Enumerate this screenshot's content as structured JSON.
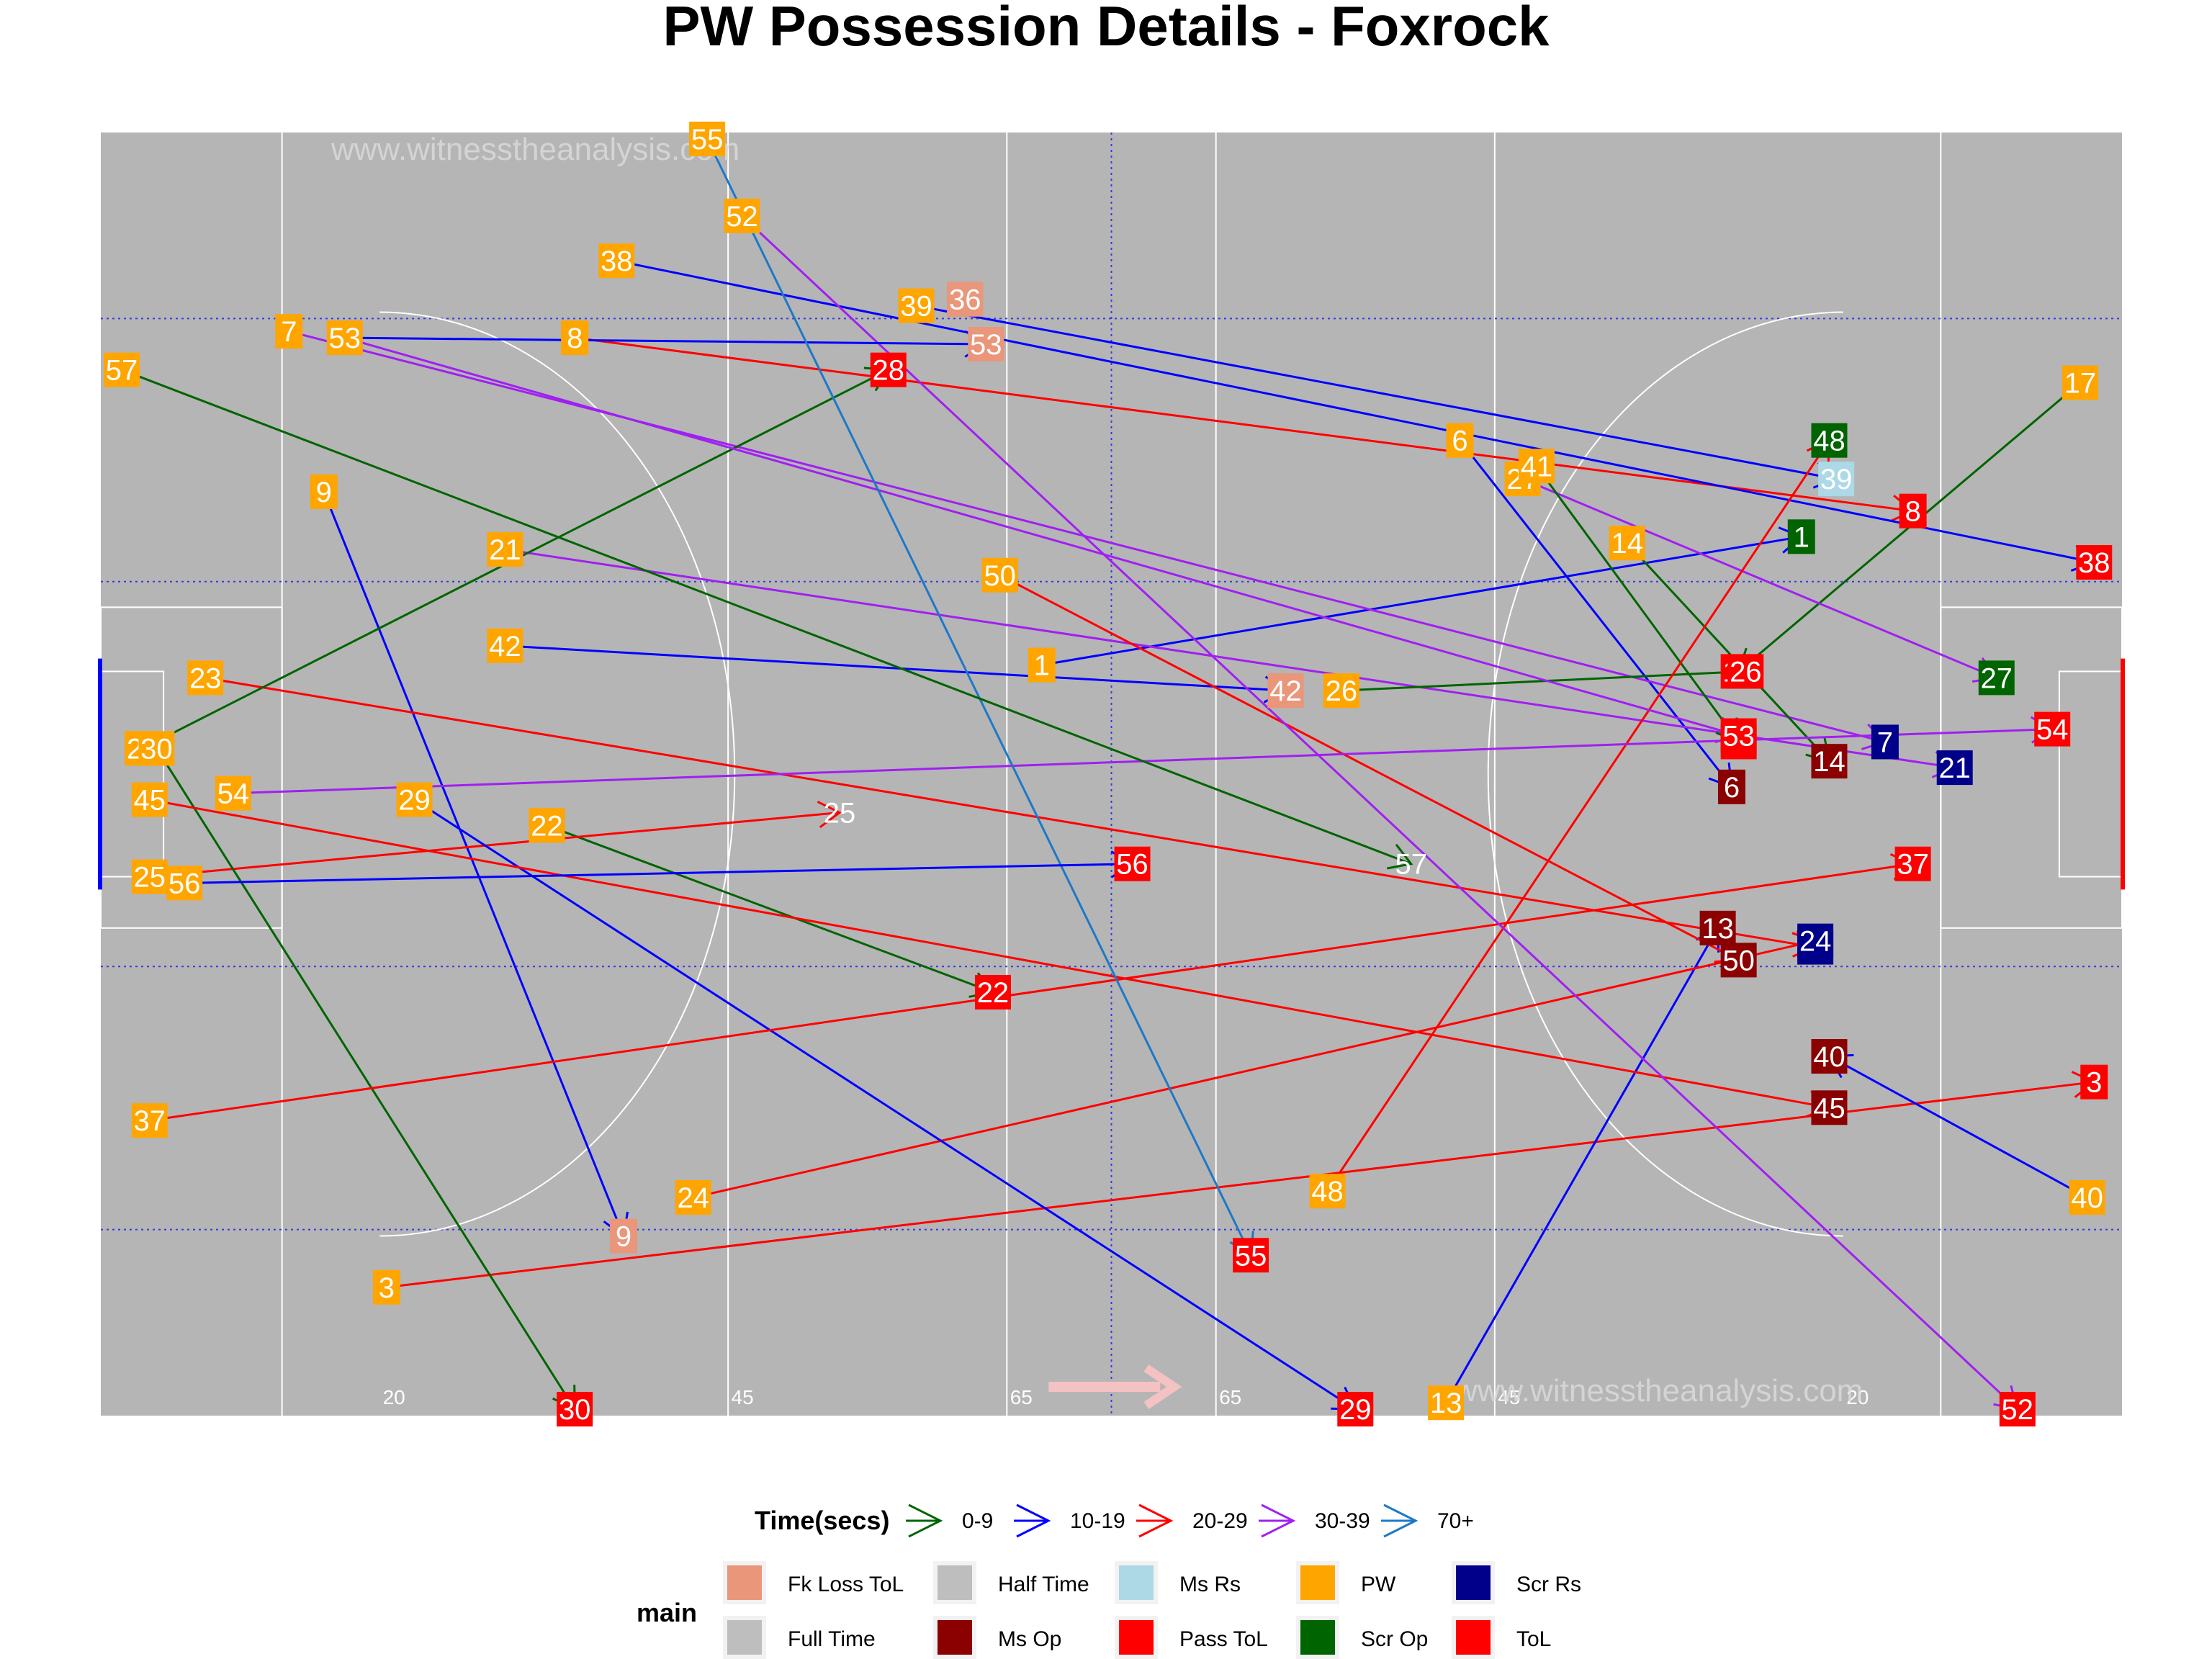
{
  "title": "PW Possession Details - Foxrock",
  "watermarks": [
    "www.witnesstheanalysis.com",
    "www.witnesstheanalysis.com"
  ],
  "yard_labels": [
    "20",
    "45",
    "65",
    "65",
    "45",
    "20"
  ],
  "legend": {
    "time_title": "Time(secs)",
    "time_bins": [
      {
        "label": "0-9",
        "color": "#006400"
      },
      {
        "label": "10-19",
        "color": "#0000FF"
      },
      {
        "label": "20-29",
        "color": "#FF0000"
      },
      {
        "label": "30-39",
        "color": "#A020F0"
      },
      {
        "label": "70+",
        "color": "#1E78C8"
      }
    ],
    "main_title": "main",
    "main_items": [
      {
        "label": "Fk Loss ToL",
        "color": "#E9967A"
      },
      {
        "label": "Full Time",
        "color": "#BEBEBE"
      },
      {
        "label": "Half Time",
        "color": "#BEBEBE"
      },
      {
        "label": "Ms Op",
        "color": "#8B0000"
      },
      {
        "label": "Ms Rs",
        "color": "#ADD8E6"
      },
      {
        "label": "Pass ToL",
        "color": "#FF0000"
      },
      {
        "label": "PW",
        "color": "#FFA500"
      },
      {
        "label": "Scr Op",
        "color": "#006400"
      },
      {
        "label": "Scr Rs",
        "color": "#00008B"
      },
      {
        "label": "ToL",
        "color": "#FF0000"
      }
    ]
  },
  "colors": {
    "pitch": "#B5B5B5",
    "pitch_lines": "#FFFFFF",
    "grid_dotted": "#3A3AE0",
    "arrow_pink": "#F4C2C2"
  },
  "chart_data": {
    "type": "scatter",
    "description": "Possession start (PW) to end points on a Gaelic pitch; x = distance along pitch (0-145), y = width position (0-100, top = 100)",
    "xlim": [
      0,
      145
    ],
    "ylim": [
      0,
      100
    ],
    "possessions": [
      {
        "id": "1",
        "time_bin": "10-19",
        "start": [
          67.5,
          58.5
        ],
        "end": [
          122.0,
          68.5
        ],
        "start_cat": "PW",
        "end_cat": "Scr Op"
      },
      {
        "id": "3",
        "time_bin": "20-29",
        "start": [
          20.5,
          10.0
        ],
        "end": [
          143.0,
          26.0
        ],
        "start_cat": "PW",
        "end_cat": "ToL"
      },
      {
        "id": "6",
        "time_bin": "10-19",
        "start": [
          97.5,
          76.0
        ],
        "end": [
          117.0,
          49.0
        ],
        "start_cat": "PW",
        "end_cat": "Ms Op"
      },
      {
        "id": "7",
        "time_bin": "30-39",
        "start": [
          13.5,
          84.5
        ],
        "end": [
          128.0,
          52.5
        ],
        "start_cat": "PW",
        "end_cat": "Scr Rs"
      },
      {
        "id": "8",
        "time_bin": "20-29",
        "start": [
          34.0,
          84.0
        ],
        "end": [
          130.0,
          70.5
        ],
        "start_cat": "PW",
        "end_cat": "ToL"
      },
      {
        "id": "9",
        "time_bin": "10-19",
        "start": [
          16.0,
          72.0
        ],
        "end": [
          37.5,
          14.0
        ],
        "start_cat": "PW",
        "end_cat": "Fk Loss ToL"
      },
      {
        "id": "13",
        "time_bin": "10-19",
        "start": [
          96.5,
          1.0
        ],
        "end": [
          116.0,
          38.0
        ],
        "start_cat": "PW",
        "end_cat": "Ms Op"
      },
      {
        "id": "14",
        "time_bin": "0-9",
        "start": [
          109.5,
          68.0
        ],
        "end": [
          124.0,
          51.0
        ],
        "start_cat": "PW",
        "end_cat": "Ms Op"
      },
      {
        "id": "17",
        "time_bin": "0-9",
        "start": [
          142.0,
          80.5
        ],
        "end": [
          117.5,
          58.0
        ],
        "start_cat": "PW",
        "end_cat": "ToL"
      },
      {
        "id": "21",
        "time_bin": "30-39",
        "start": [
          29.0,
          67.5
        ],
        "end": [
          133.0,
          50.5
        ],
        "start_cat": "PW",
        "end_cat": "Scr Rs"
      },
      {
        "id": "22",
        "time_bin": "0-9",
        "start": [
          32.0,
          46.0
        ],
        "end": [
          64.0,
          33.0
        ],
        "start_cat": "PW",
        "end_cat": "Pass ToL"
      },
      {
        "id": "23",
        "time_bin": "20-29",
        "start": [
          7.5,
          57.5
        ],
        "end": [
          123.0,
          36.5
        ],
        "start_cat": "PW",
        "end_cat": "Scr Rs"
      },
      {
        "id": "24",
        "time_bin": "20-29",
        "start": [
          42.5,
          17.0
        ],
        "end": [
          123.0,
          37.0
        ],
        "start_cat": "PW",
        "end_cat": "Scr Rs"
      },
      {
        "id": "25",
        "time_bin": "20-29",
        "start": [
          3.5,
          42.0
        ],
        "end": [
          53.0,
          47.0
        ],
        "start_cat": "PW",
        "end_cat": "Half Time"
      },
      {
        "id": "26",
        "time_bin": "0-9",
        "start": [
          89.0,
          56.5
        ],
        "end": [
          118.0,
          58.0
        ],
        "start_cat": "PW",
        "end_cat": "ToL"
      },
      {
        "id": "27",
        "time_bin": "30-39",
        "start": [
          102.0,
          73.0
        ],
        "end": [
          136.0,
          57.5
        ],
        "start_cat": "PW",
        "end_cat": "Scr Op"
      },
      {
        "id": "28",
        "time_bin": "0-9",
        "start": [
          3.0,
          52.0
        ],
        "end": [
          56.5,
          81.5
        ],
        "start_cat": "PW",
        "end_cat": "ToL"
      },
      {
        "id": "29",
        "time_bin": "10-19",
        "start": [
          22.5,
          48.0
        ],
        "end": [
          90.0,
          0.5
        ],
        "start_cat": "PW",
        "end_cat": "ToL"
      },
      {
        "id": "30",
        "time_bin": "0-9",
        "start": [
          4.0,
          52.0
        ],
        "end": [
          34.0,
          0.5
        ],
        "start_cat": "PW",
        "end_cat": "ToL"
      },
      {
        "id": "36",
        "time_bin": "0-9",
        "start": [
          62.0,
          87.0
        ],
        "end": [
          62.0,
          87.0
        ],
        "start_cat": "Fk Loss ToL",
        "end_cat": "Fk Loss ToL"
      },
      {
        "id": "37",
        "time_bin": "20-29",
        "start": [
          3.5,
          23.0
        ],
        "end": [
          130.0,
          43.0
        ],
        "start_cat": "PW",
        "end_cat": "ToL"
      },
      {
        "id": "38",
        "time_bin": "10-19",
        "start": [
          37.0,
          90.0
        ],
        "end": [
          143.0,
          66.5
        ],
        "start_cat": "PW",
        "end_cat": "ToL"
      },
      {
        "id": "39",
        "time_bin": "10-19",
        "start": [
          58.5,
          86.5
        ],
        "end": [
          124.5,
          73.0
        ],
        "start_cat": "PW",
        "end_cat": "Ms Rs"
      },
      {
        "id": "40",
        "time_bin": "10-19",
        "start": [
          142.5,
          17.0
        ],
        "end": [
          124.0,
          28.0
        ],
        "start_cat": "PW",
        "end_cat": "Ms Op"
      },
      {
        "id": "41",
        "time_bin": "0-9",
        "start": [
          103.0,
          74.0
        ],
        "end": [
          117.5,
          52.5
        ],
        "start_cat": "PW",
        "end_cat": "ToL"
      },
      {
        "id": "42",
        "time_bin": "10-19",
        "start": [
          29.0,
          60.0
        ],
        "end": [
          85.0,
          56.5
        ],
        "start_cat": "PW",
        "end_cat": "Fk Loss ToL"
      },
      {
        "id": "45",
        "time_bin": "20-29",
        "start": [
          3.5,
          48.0
        ],
        "end": [
          124.0,
          24.0
        ],
        "start_cat": "PW",
        "end_cat": "Ms Op"
      },
      {
        "id": "48",
        "time_bin": "20-29",
        "start": [
          88.0,
          17.5
        ],
        "end": [
          124.0,
          76.0
        ],
        "start_cat": "PW",
        "end_cat": "Scr Op"
      },
      {
        "id": "50",
        "time_bin": "20-29",
        "start": [
          64.5,
          65.5
        ],
        "end": [
          117.5,
          35.5
        ],
        "start_cat": "PW",
        "end_cat": "Ms Op"
      },
      {
        "id": "52",
        "time_bin": "30-39",
        "start": [
          46.0,
          93.5
        ],
        "end": [
          137.5,
          0.5
        ],
        "start_cat": "PW",
        "end_cat": "ToL"
      },
      {
        "id": "53",
        "time_bin": "10-19",
        "start": [
          17.5,
          84.0
        ],
        "end": [
          63.5,
          83.5
        ],
        "start_cat": "PW",
        "end_cat": "Fk Loss ToL"
      },
      {
        "id": "53b",
        "time_bin": "30-39",
        "start": [
          17.5,
          84.0
        ],
        "end": [
          117.5,
          53.0
        ],
        "start_cat": "PW",
        "end_cat": "ToL"
      },
      {
        "id": "54",
        "time_bin": "30-39",
        "start": [
          9.5,
          48.5
        ],
        "end": [
          140.0,
          53.5
        ],
        "start_cat": "PW",
        "end_cat": "ToL"
      },
      {
        "id": "55",
        "time_bin": "70+",
        "start": [
          43.5,
          99.5
        ],
        "end": [
          82.5,
          12.5
        ],
        "start_cat": "PW",
        "end_cat": "ToL"
      },
      {
        "id": "56",
        "time_bin": "10-19",
        "start": [
          6.0,
          41.5
        ],
        "end": [
          74.0,
          43.0
        ],
        "start_cat": "PW",
        "end_cat": "ToL"
      },
      {
        "id": "57",
        "time_bin": "0-9",
        "start": [
          1.5,
          81.5
        ],
        "end": [
          94.0,
          43.0
        ],
        "start_cat": "PW",
        "end_cat": "Full Time"
      }
    ]
  }
}
